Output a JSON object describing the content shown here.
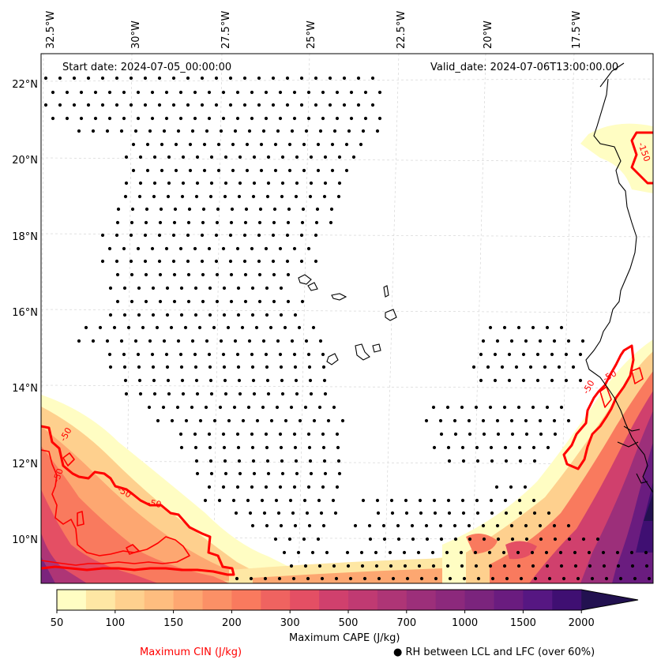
{
  "map": {
    "start_date": "Start date: 2024-07-05_00:00:00",
    "valid_date": "Valid_date: 2024-07-06T13:00:00.00",
    "lon_labels": [
      "32.5°W",
      "30°W",
      "27.5°W",
      "25°W",
      "22.5°W",
      "20°W",
      "17.5°W"
    ],
    "lat_labels": [
      "22°N",
      "20°N",
      "18°N",
      "16°N",
      "14°N",
      "12°N",
      "10°N"
    ],
    "contour_labels": [
      "-150",
      "-50",
      "-50",
      "-50",
      "-50",
      "-50",
      "-50"
    ]
  },
  "colorbar": {
    "ticks": [
      "50",
      "100",
      "150",
      "200",
      "300",
      "500",
      "700",
      "1000",
      "1500",
      "2000"
    ],
    "levels": [
      50,
      75,
      100,
      125,
      150,
      175,
      200,
      250,
      300,
      400,
      500,
      600,
      700,
      850,
      1000,
      1250,
      1500,
      1750,
      2000
    ],
    "colors": [
      "#fffdc3",
      "#fee7a4",
      "#fed08e",
      "#febd7f",
      "#fda771",
      "#fb9066",
      "#f97a5e",
      "#ef6360",
      "#e44f64",
      "#d0406d",
      "#c03a72",
      "#ae3576",
      "#9c2f7a",
      "#8c297c",
      "#7b247d",
      "#6a1c7f",
      "#561782",
      "#3f0f72",
      "#221150"
    ],
    "label": "Maximum CAPE (J/kg)"
  },
  "legend": {
    "cin_label": "Maximum CIN (J/kg)",
    "cin_color": "#ff0000",
    "rh_label": "RH between LCL and LFC (over 60%)",
    "rh_marker": "●"
  }
}
